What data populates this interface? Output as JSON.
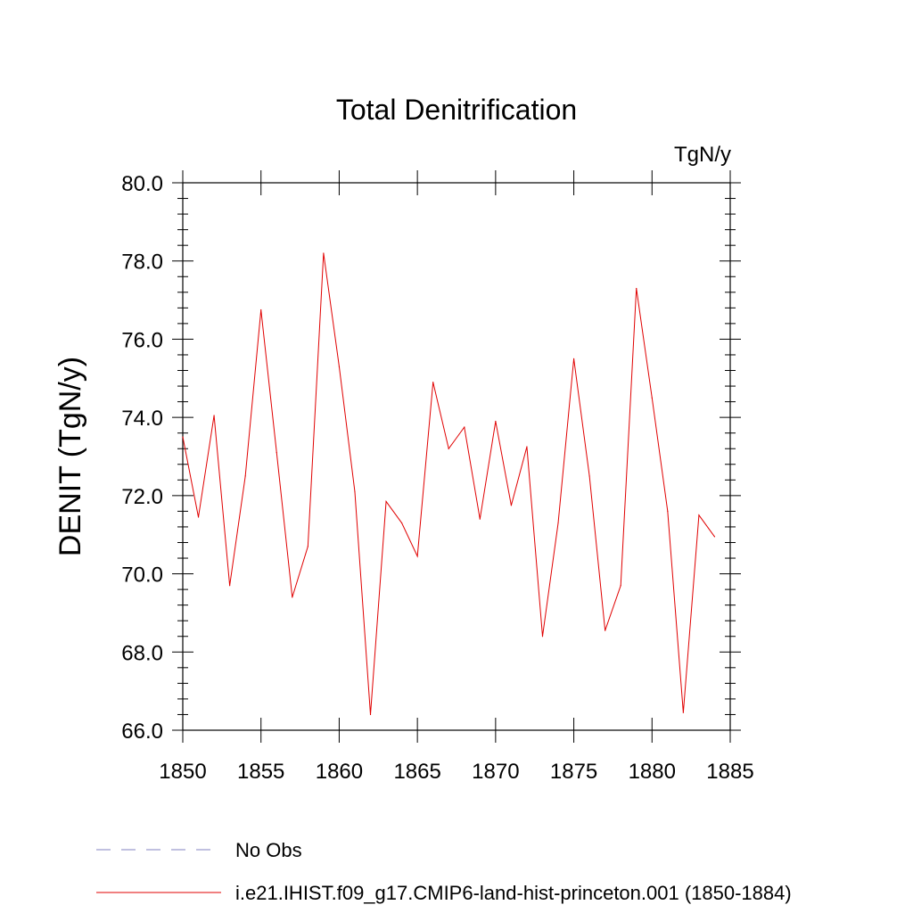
{
  "chart_data": {
    "type": "line",
    "title": "Total Denitrification",
    "units": "TgN/y",
    "ylabel": "DENIT  (TgN/y)",
    "xlabel": "",
    "xlim": [
      1850,
      1885
    ],
    "ylim": [
      66.0,
      80.0
    ],
    "xticks": [
      1850,
      1855,
      1860,
      1865,
      1870,
      1875,
      1880,
      1885
    ],
    "yticks": [
      "66.0",
      "68.0",
      "70.0",
      "72.0",
      "74.0",
      "76.0",
      "78.0",
      "80.0"
    ],
    "grid": false,
    "legend_position": "bottom",
    "legend": [
      {
        "label": "No Obs",
        "color": "#8080c0",
        "style": "dashed"
      },
      {
        "label": "i.e21.IHIST.f09_g17.CMIP6-land-hist-princeton.001 (1850-1884)",
        "color": "#e00000",
        "style": "solid"
      }
    ],
    "series": [
      {
        "name": "i.e21.IHIST.f09_g17.CMIP6-land-hist-princeton.001 (1850-1884)",
        "color": "#e00000",
        "x": [
          1850,
          1851,
          1852,
          1853,
          1854,
          1855,
          1856,
          1857,
          1858,
          1859,
          1860,
          1861,
          1862,
          1863,
          1864,
          1865,
          1866,
          1867,
          1868,
          1869,
          1870,
          1871,
          1872,
          1873,
          1874,
          1875,
          1876,
          1877,
          1878,
          1879,
          1880,
          1881,
          1882,
          1883,
          1884
        ],
        "values": [
          73.5,
          71.45,
          74.05,
          69.7,
          72.5,
          76.75,
          73.1,
          69.4,
          70.7,
          78.2,
          75.3,
          72.1,
          66.4,
          71.85,
          71.3,
          70.45,
          74.9,
          73.2,
          73.75,
          71.4,
          73.9,
          71.75,
          73.25,
          68.4,
          71.3,
          75.5,
          72.5,
          68.55,
          69.7,
          77.3,
          74.5,
          71.6,
          66.45,
          71.5,
          70.95
        ]
      }
    ]
  }
}
